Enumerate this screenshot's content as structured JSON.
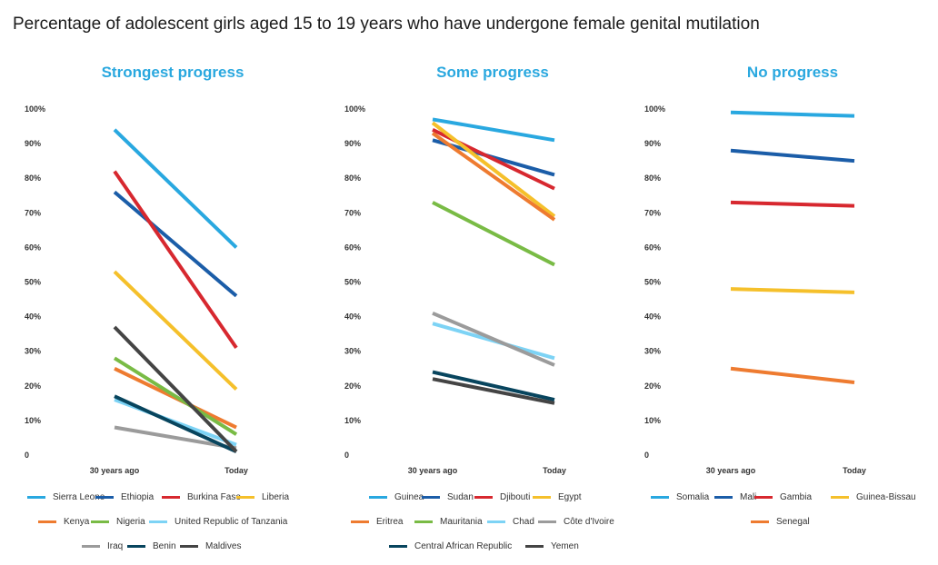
{
  "title": "Percentage of adolescent girls aged 15 to 19 years who have undergone female genital mutilation",
  "chart_data": [
    {
      "type": "line",
      "title": "Strongest progress",
      "categories": [
        "30 years ago",
        "Today"
      ],
      "y_ticks": [
        "0",
        "10%",
        "20%",
        "30%",
        "40%",
        "50%",
        "60%",
        "70%",
        "80%",
        "90%",
        "100%"
      ],
      "ylim": [
        0,
        100
      ],
      "series": [
        {
          "name": "Sierra Leone",
          "color": "#29a8e0",
          "values": [
            94,
            60
          ]
        },
        {
          "name": "Ethiopia",
          "color": "#1b5da8",
          "values": [
            76,
            46
          ]
        },
        {
          "name": "Burkina Faso",
          "color": "#d7282f",
          "values": [
            82,
            31
          ]
        },
        {
          "name": "Liberia",
          "color": "#f5c02b",
          "values": [
            53,
            19
          ]
        },
        {
          "name": "Kenya",
          "color": "#ee7b30",
          "values": [
            25,
            8
          ]
        },
        {
          "name": "Nigeria",
          "color": "#79bb45",
          "values": [
            28,
            6
          ]
        },
        {
          "name": "United Republic of Tanzania",
          "color": "#7dd3f5",
          "values": [
            16,
            3
          ]
        },
        {
          "name": "Iraq",
          "color": "#9b9b9b",
          "values": [
            8,
            2
          ]
        },
        {
          "name": "Benin",
          "color": "#08455e",
          "values": [
            17,
            1
          ]
        },
        {
          "name": "Maldives",
          "color": "#444444",
          "values": [
            37,
            1
          ]
        }
      ]
    },
    {
      "type": "line",
      "title": "Some progress",
      "categories": [
        "30 years ago",
        "Today"
      ],
      "y_ticks": [
        "0",
        "10%",
        "20%",
        "30%",
        "40%",
        "50%",
        "60%",
        "70%",
        "80%",
        "90%",
        "100%"
      ],
      "ylim": [
        0,
        100
      ],
      "series": [
        {
          "name": "Guinea",
          "color": "#29a8e0",
          "values": [
            97,
            91
          ]
        },
        {
          "name": "Sudan",
          "color": "#1b5da8",
          "values": [
            91,
            81
          ]
        },
        {
          "name": "Djibouti",
          "color": "#d7282f",
          "values": [
            94,
            77
          ]
        },
        {
          "name": "Egypt",
          "color": "#f5c02b",
          "values": [
            96,
            69
          ]
        },
        {
          "name": "Eritrea",
          "color": "#ee7b30",
          "values": [
            93,
            68
          ]
        },
        {
          "name": "Mauritania",
          "color": "#79bb45",
          "values": [
            73,
            55
          ]
        },
        {
          "name": "Chad",
          "color": "#7dd3f5",
          "values": [
            38,
            28
          ]
        },
        {
          "name": "Côte d'Ivoire",
          "color": "#9b9b9b",
          "values": [
            41,
            26
          ]
        },
        {
          "name": "Central African Republic",
          "color": "#08455e",
          "values": [
            24,
            16
          ]
        },
        {
          "name": "Yemen",
          "color": "#444444",
          "values": [
            22,
            15
          ]
        }
      ]
    },
    {
      "type": "line",
      "title": "No progress",
      "categories": [
        "30 years ago",
        "Today"
      ],
      "y_ticks": [
        "0",
        "10%",
        "20%",
        "30%",
        "40%",
        "50%",
        "60%",
        "70%",
        "80%",
        "90%",
        "100%"
      ],
      "ylim": [
        0,
        100
      ],
      "series": [
        {
          "name": "Somalia",
          "color": "#29a8e0",
          "values": [
            99,
            98
          ]
        },
        {
          "name": "Mali",
          "color": "#1b5da8",
          "values": [
            88,
            85
          ]
        },
        {
          "name": "Gambia",
          "color": "#d7282f",
          "values": [
            73,
            72
          ]
        },
        {
          "name": "Guinea-Bissau",
          "color": "#f5c02b",
          "values": [
            48,
            47
          ]
        },
        {
          "name": "Senegal",
          "color": "#ee7b30",
          "values": [
            25,
            21
          ]
        }
      ]
    }
  ]
}
